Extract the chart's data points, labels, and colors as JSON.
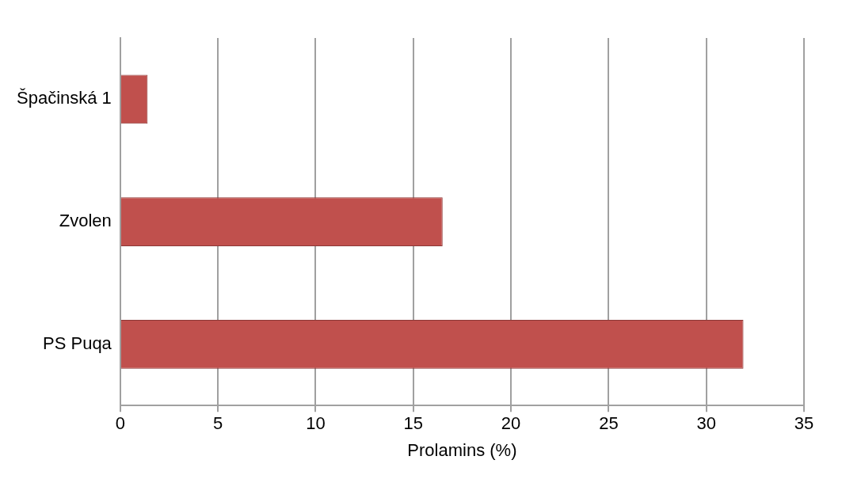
{
  "chart_data": {
    "type": "bar",
    "orientation": "horizontal",
    "xlabel": "Prolamins (%)",
    "categories": [
      "Špačinská 1",
      "Zvolen",
      "PS Puqa"
    ],
    "values": [
      1.4,
      16.5,
      31.9
    ],
    "color": "#c0504d",
    "xlim": [
      0,
      35
    ],
    "xticks": [
      0,
      5,
      10,
      15,
      20,
      25,
      30,
      35
    ],
    "grid": "x",
    "legend": false
  }
}
